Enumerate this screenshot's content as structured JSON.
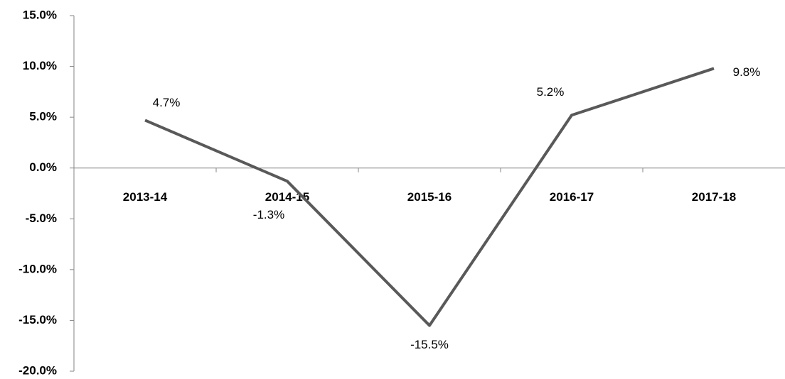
{
  "chart_data": {
    "type": "line",
    "categories": [
      "2013-14",
      "2014-15",
      "2015-16",
      "2016-17",
      "2017-18"
    ],
    "values": [
      4.7,
      -1.3,
      -15.5,
      5.2,
      9.8
    ],
    "value_labels": [
      "4.7%",
      "-1.3%",
      "-15.5%",
      "5.2%",
      "9.8%"
    ],
    "color": "#595959",
    "ylim": [
      -20,
      15
    ],
    "yticks": [
      {
        "value": -20,
        "label": "-20.0%"
      },
      {
        "value": -15,
        "label": "-15.0%"
      },
      {
        "value": -10,
        "label": "-10.0%"
      },
      {
        "value": -5,
        "label": "-5.0%"
      },
      {
        "value": 0,
        "label": "0.0%"
      },
      {
        "value": 5,
        "label": "5.0%"
      },
      {
        "value": 10,
        "label": "10.0%"
      },
      {
        "value": 15,
        "label": "15.0%"
      }
    ]
  }
}
